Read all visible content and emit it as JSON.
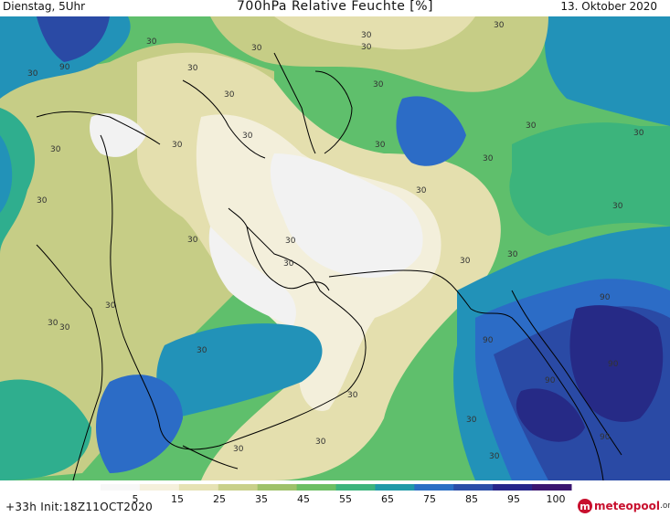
{
  "header": {
    "left": "Dienstag, 5Uhr",
    "title": "700hPa Relative Feuchte [%]",
    "right": "13. Oktober 2020"
  },
  "colorbar": {
    "labels": [
      "5",
      "15",
      "25",
      "35",
      "45",
      "55",
      "65",
      "75",
      "85",
      "95",
      "100"
    ],
    "colors": [
      "#f7f7f7",
      "#f5f0dc",
      "#e6e2b4",
      "#c9d08a",
      "#9fc26a",
      "#6cbf63",
      "#3cb47c",
      "#1f9aa8",
      "#2a6fc4",
      "#2b4ea8",
      "#26258a",
      "#3b1670"
    ]
  },
  "footer": {
    "init": "+33h  Init:18Z11OCT2020",
    "brand": "meteopool",
    "brand_tld": ".org",
    "brand_icon": "m"
  },
  "map": {
    "contour_labels": [
      "30",
      "30",
      "30",
      "30",
      "30",
      "30",
      "30",
      "30",
      "30",
      "30",
      "30",
      "30",
      "30",
      "30",
      "30",
      "30",
      "30",
      "30",
      "30",
      "30",
      "30",
      "30",
      "30",
      "30",
      "30",
      "30",
      "30",
      "30",
      "30",
      "30",
      "30",
      "30",
      "30",
      "90",
      "90",
      "90",
      "90",
      "90",
      "90"
    ],
    "colors": {
      "dry": "#f2f2f2",
      "very_light": "#f3efdb",
      "light": "#e4dfae",
      "olive": "#c6cd86",
      "light_green": "#9dc56b",
      "green": "#5fbf6c",
      "teal": "#2fae8e",
      "cyan_blue": "#2292b8",
      "blue": "#2c6cc6",
      "dark_blue": "#2a4aa5",
      "navy": "#262a86",
      "purple": "#3a1a72",
      "coast": "#000000"
    }
  }
}
